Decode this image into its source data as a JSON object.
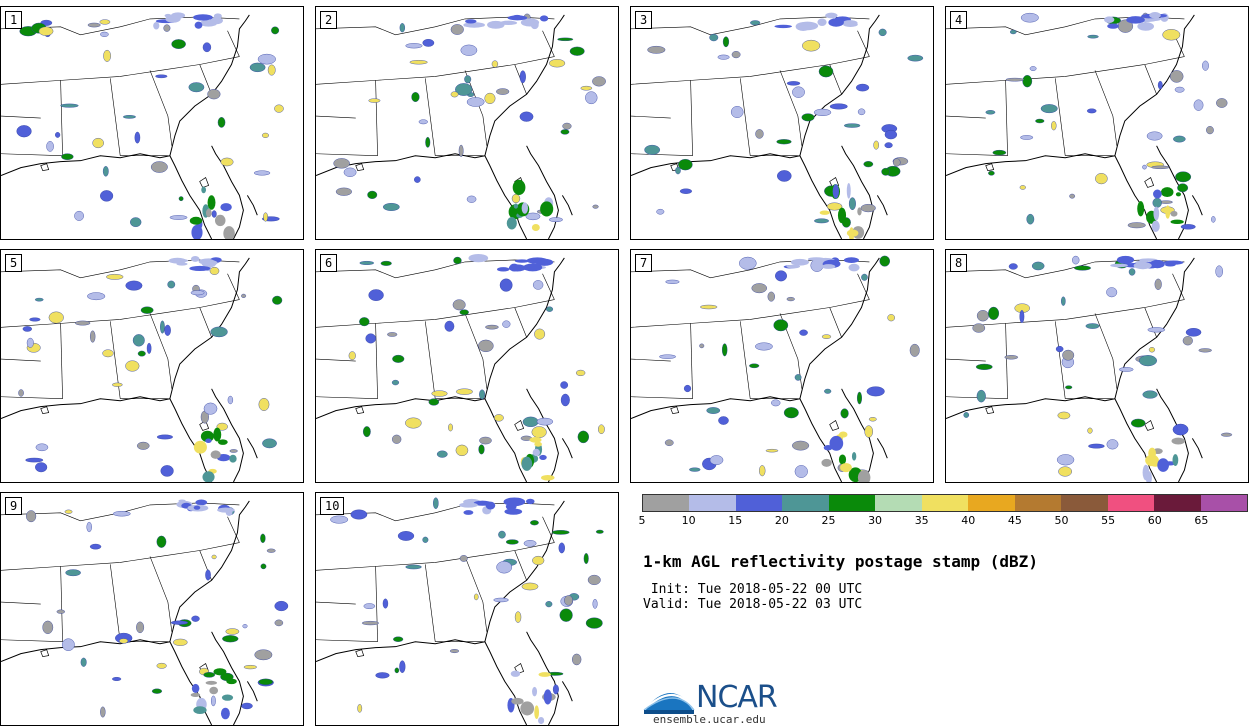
{
  "panels": [
    {
      "number": "1"
    },
    {
      "number": "2"
    },
    {
      "number": "3"
    },
    {
      "number": "4"
    },
    {
      "number": "5"
    },
    {
      "number": "6"
    },
    {
      "number": "7"
    },
    {
      "number": "8"
    },
    {
      "number": "9"
    },
    {
      "number": "10"
    }
  ],
  "colorbar": {
    "colors": [
      "#a0a0a0",
      "#b4bce8",
      "#5060d8",
      "#4e9696",
      "#0a8a0a",
      "#b4dcb4",
      "#f0e060",
      "#e8a820",
      "#b47a30",
      "#8a5a3a",
      "#f05080",
      "#6a1a3a",
      "#a850a8"
    ],
    "ticks": [
      "5",
      "10",
      "15",
      "20",
      "25",
      "30",
      "35",
      "40",
      "45",
      "50",
      "55",
      "60",
      "65"
    ]
  },
  "title": "1-km AGL reflectivity postage stamp (dBZ)",
  "init_line": " Init: Tue 2018-05-22 00 UTC",
  "valid_line": "Valid: Tue 2018-05-22 03 UTC",
  "logo": {
    "name": "NCAR",
    "url": "ensemble.ucar.edu"
  }
}
